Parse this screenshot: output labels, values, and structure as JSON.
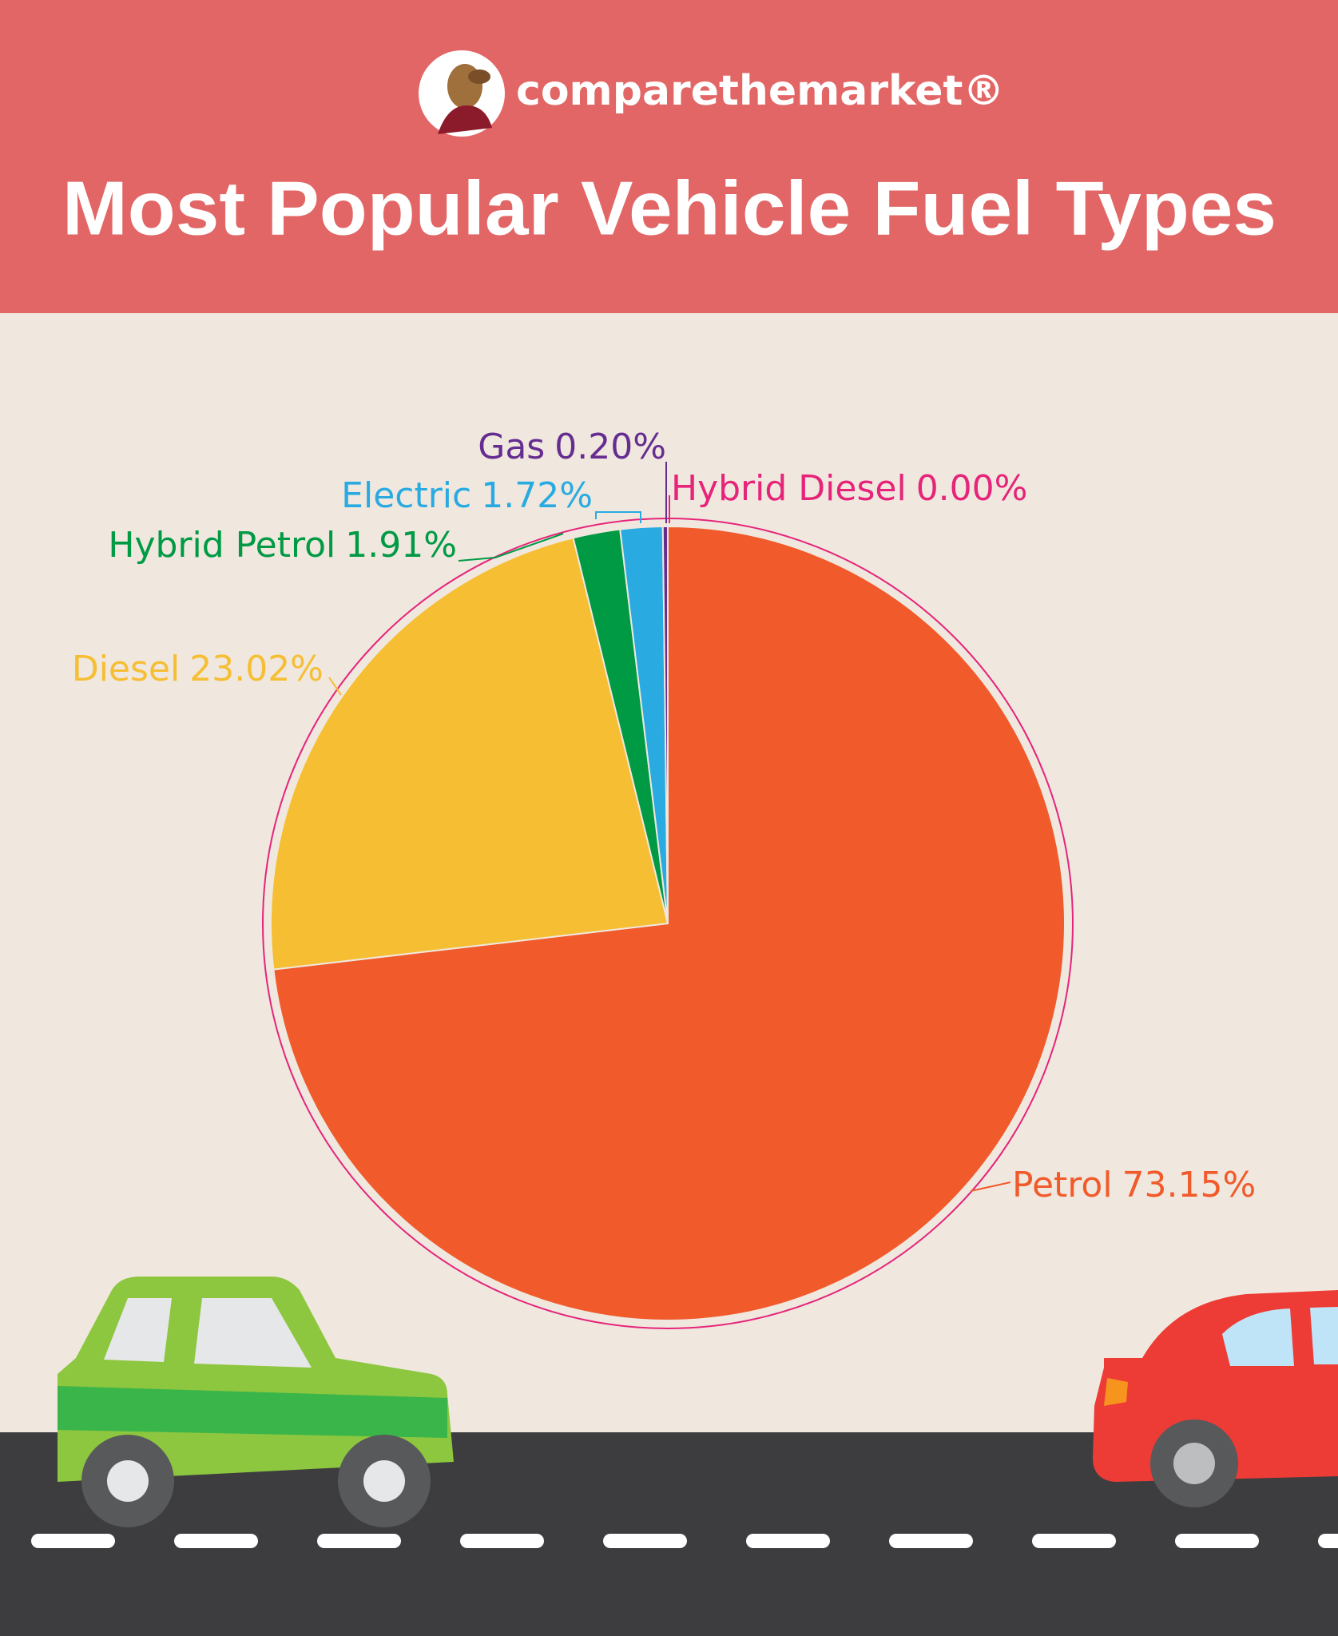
{
  "brand": "comparethemarket®",
  "chart_data": {
    "type": "pie",
    "title": "Most Popular Vehicle Fuel Types",
    "categories": [
      "Petrol",
      "Diesel",
      "Hybrid Petrol",
      "Electric",
      "Gas",
      "Hybrid Diesel"
    ],
    "values": [
      73.15,
      23.02,
      1.91,
      1.72,
      0.2,
      0.0
    ],
    "value_labels": [
      "73.15%",
      "23.02%",
      "1.91%",
      "1.72%",
      "0.20%",
      "0.00%"
    ],
    "colors": [
      "#f15a2b",
      "#f6be33",
      "#009a44",
      "#29abe2",
      "#662d91",
      "#e6247a"
    ]
  }
}
